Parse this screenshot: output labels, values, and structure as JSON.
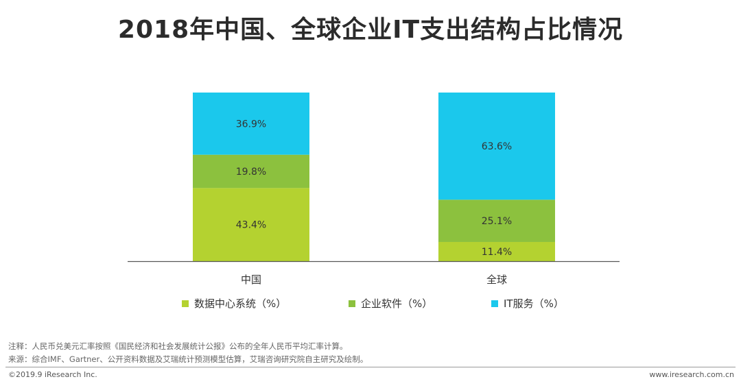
{
  "title": "2018年中国、全球企业IT支出结构占比情况",
  "chart_data": {
    "type": "bar",
    "stacked": true,
    "percent": true,
    "categories": [
      "中国",
      "全球"
    ],
    "series": [
      {
        "name": "数据中心系统（%）",
        "values": [
          43.4,
          11.4
        ],
        "color": "#b4d230",
        "labels": [
          "43.4%",
          "11.4%"
        ]
      },
      {
        "name": "企业软件（%）",
        "values": [
          19.8,
          25.1
        ],
        "color": "#8cc13e",
        "labels": [
          "19.8%",
          "25.1%"
        ]
      },
      {
        "name": "IT服务（%）",
        "values": [
          36.9,
          63.6
        ],
        "color": "#1bc8ec",
        "labels": [
          "36.9%",
          "63.6%"
        ]
      }
    ],
    "ylim": [
      0,
      100
    ],
    "xlabel": "",
    "ylabel": "",
    "legend_position": "bottom"
  },
  "notes": {
    "line1": "注释：人民币兑美元汇率按照《国民经济和社会发展统计公报》公布的全年人民币平均汇率计算。",
    "line2": "来源：综合IMF、Gartner、公开资料数据及艾瑞统计预测模型估算，艾瑞咨询研究院自主研究及绘制。"
  },
  "footer": {
    "copyright": "©2019.9 iResearch Inc.",
    "url": "www.iresearch.com.cn"
  }
}
